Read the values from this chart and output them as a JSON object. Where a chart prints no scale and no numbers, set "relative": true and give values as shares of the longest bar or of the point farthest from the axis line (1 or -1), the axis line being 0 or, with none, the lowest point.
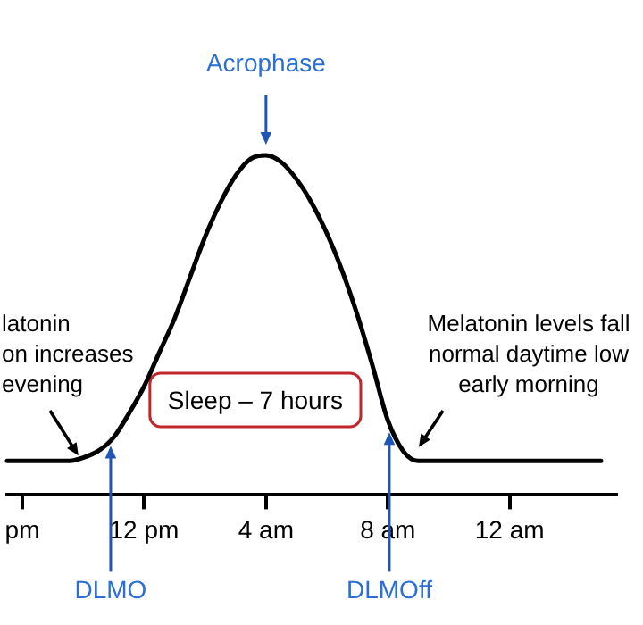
{
  "chart_data": {
    "type": "line",
    "relative": true,
    "categories": [
      null,
      "pm",
      null,
      null,
      null,
      null,
      null,
      null,
      null,
      "12 pm",
      null,
      null,
      null,
      null,
      null,
      null,
      null,
      "4 am",
      null,
      null,
      null,
      null,
      null,
      null,
      null,
      "8 am",
      null,
      null,
      null,
      null,
      null,
      null,
      null,
      "12 am",
      null,
      null,
      null,
      null,
      null,
      null,
      null
    ],
    "series": [
      {
        "color": "#000000",
        "values": [
          0.1,
          0.1,
          0.1,
          0.1,
          0.1,
          0.11,
          0.13,
          0.17,
          0.24,
          0.32,
          0.42,
          0.52,
          0.64,
          0.76,
          0.86,
          0.94,
          0.99,
          1,
          0.98,
          0.93,
          0.86,
          0.77,
          0.66,
          0.53,
          0.38,
          0.22,
          0.13,
          0.1,
          0.1,
          0.1,
          0.1,
          0.1,
          0.1,
          0.1,
          0.1,
          0.1,
          0.1,
          0.1,
          0.1,
          0.1,
          null
        ]
      }
    ],
    "grid": false,
    "legend": false,
    "marker": "none",
    "line_style": "solid",
    "annotations": [
      "Acrophase",
      "DLMO",
      "DLMOff",
      "latonin\non increases\nevening",
      "Melatonin levels fall\nnormal daytime low\nearly morning",
      "Sleep – 7 hours"
    ]
  }
}
